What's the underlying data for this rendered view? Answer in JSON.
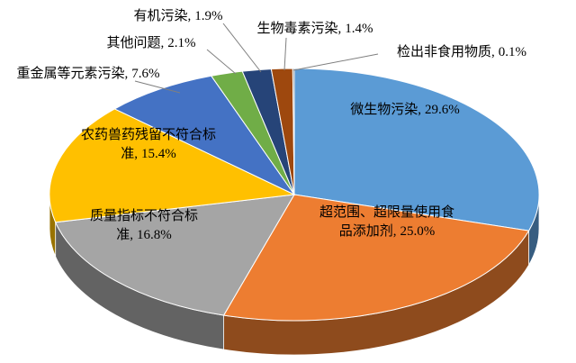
{
  "chart_data": {
    "type": "pie3d",
    "categories": [
      "微生物污染,",
      "超范围、超限量使用食品添加剂,",
      "质量指标不符合标准,",
      "农药兽药残留不符合标准,",
      "重金属等元素污染,",
      "其他问题,",
      "有机污染,",
      "生物毒素污染,",
      "检出非食用物质,"
    ],
    "values": [
      29.6,
      25.0,
      16.8,
      15.4,
      7.6,
      2.1,
      1.9,
      1.4,
      0.1
    ],
    "value_labels": [
      "29.6%",
      "25.0%",
      "16.8%",
      "15.4%",
      "7.6%",
      "2.1%",
      "1.9%",
      "1.4%",
      "0.1%"
    ],
    "colors": [
      "#5b9bd5",
      "#ed7d31",
      "#a5a5a5",
      "#ffc000",
      "#4472c4",
      "#70ad47",
      "#264478",
      "#9e480e",
      "#636363"
    ]
  }
}
